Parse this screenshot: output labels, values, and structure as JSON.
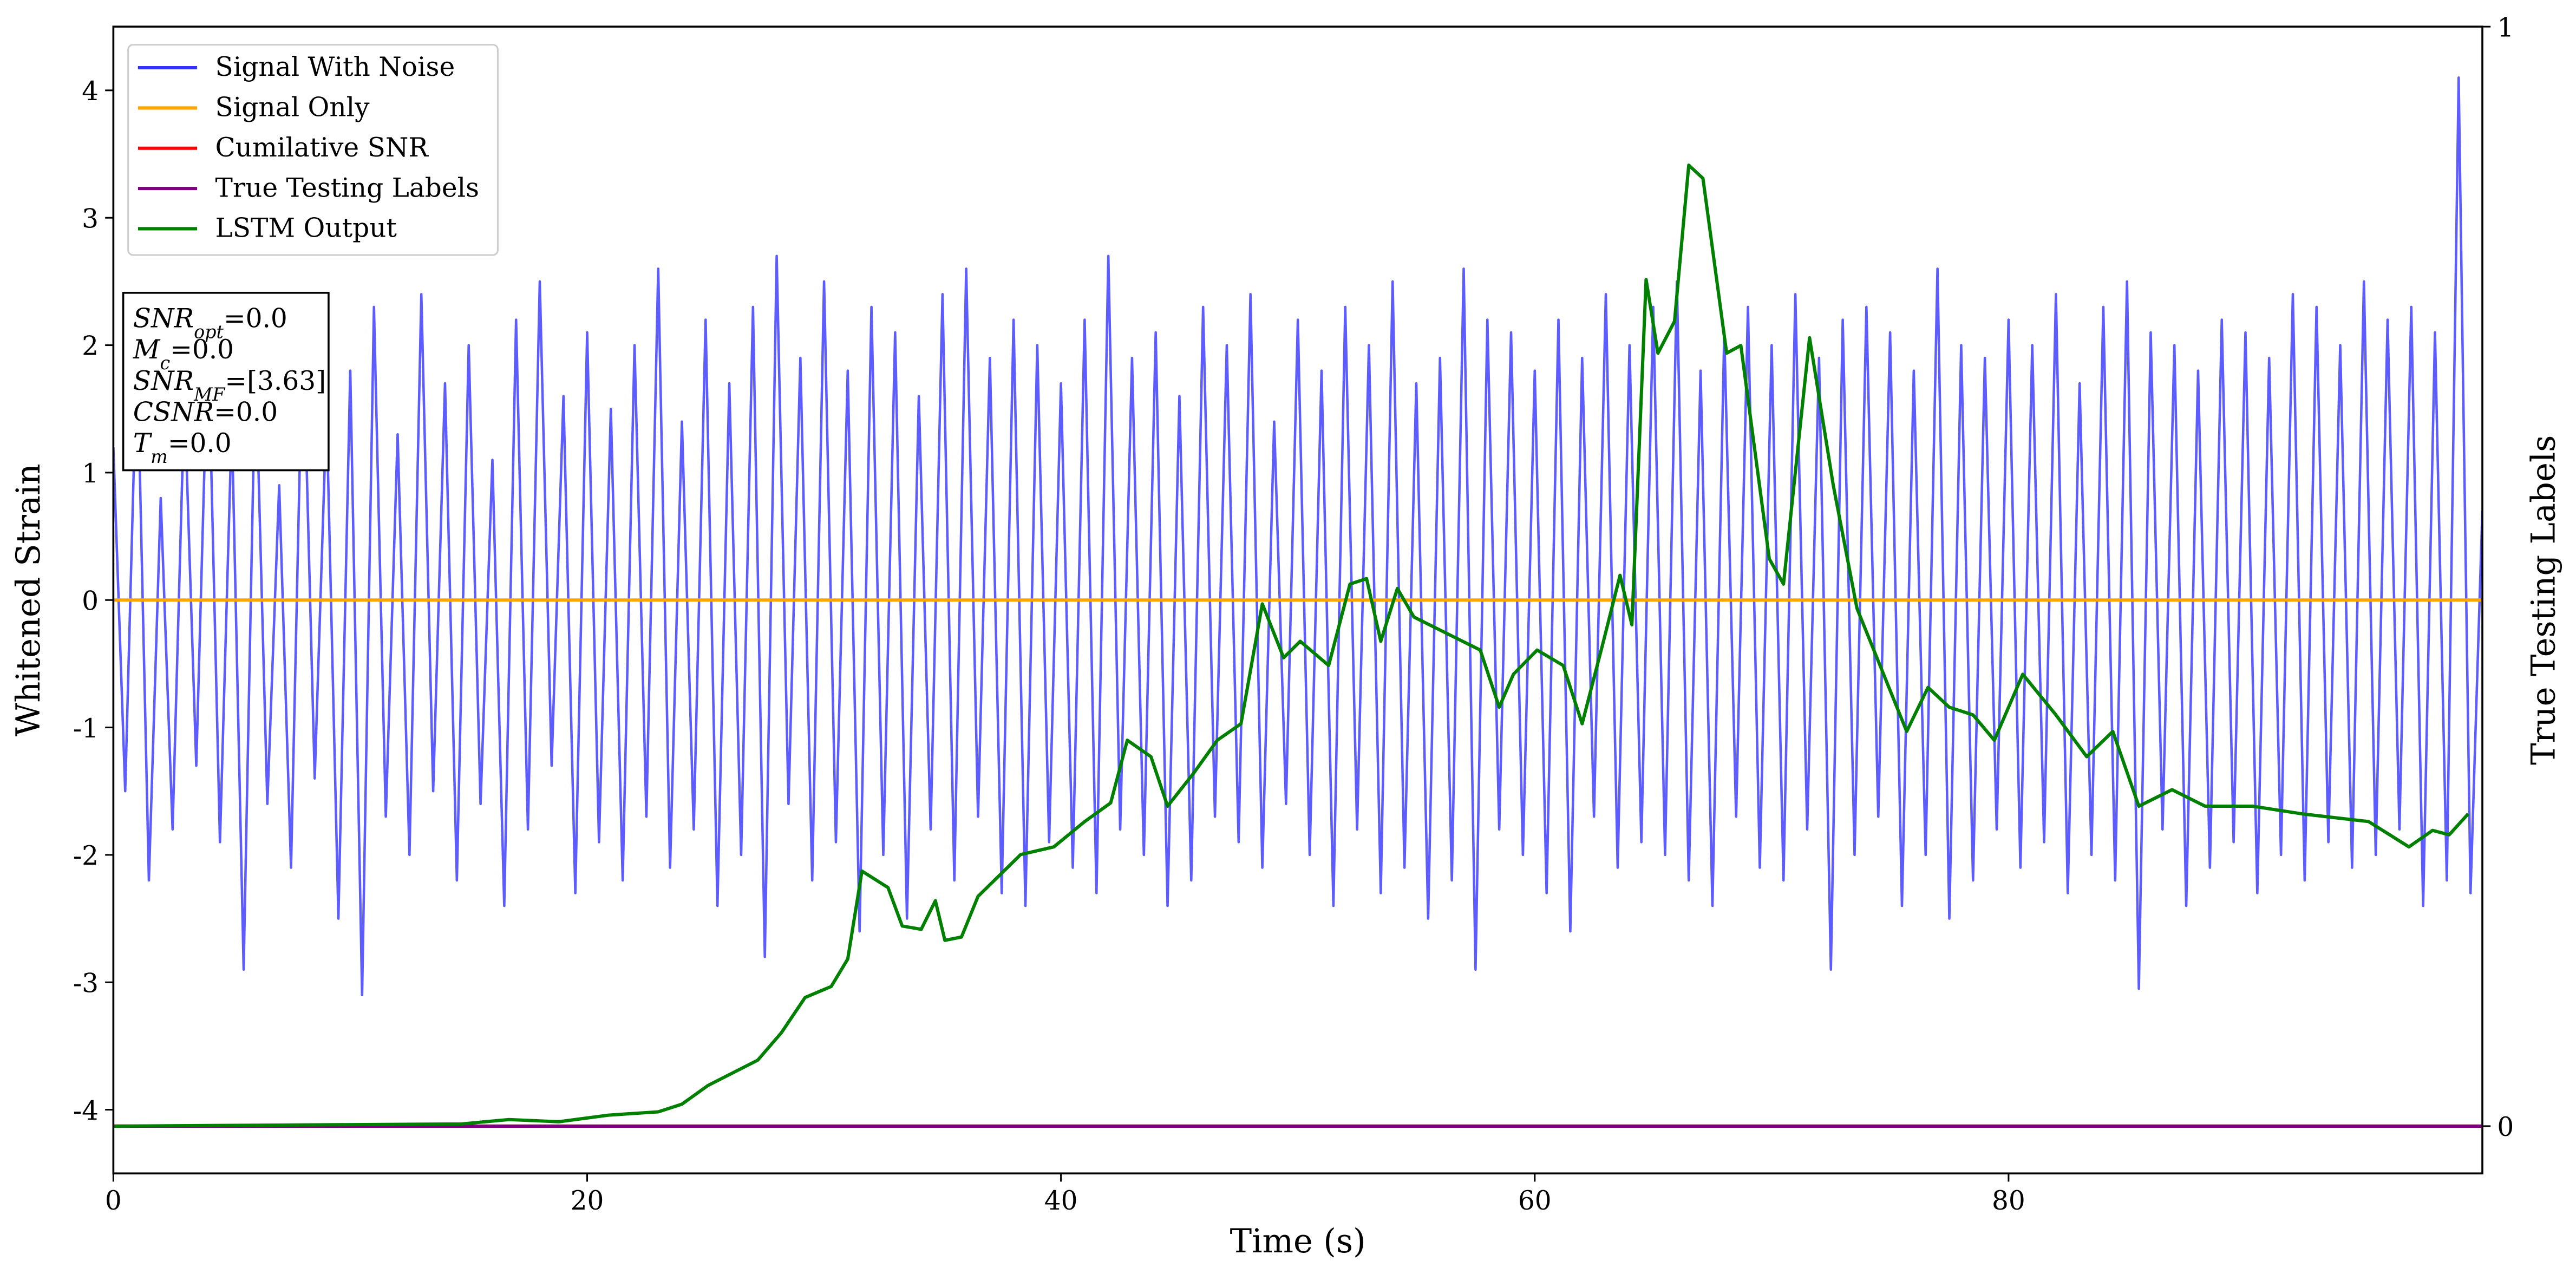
{
  "chart_data": {
    "type": "line",
    "x_label": "Time (s)",
    "y_label": "Whitened Strain",
    "y2_label": "True Testing Labels",
    "xlim": [
      0,
      100
    ],
    "ylim": [
      -4.5,
      4.5
    ],
    "y2lim": [
      -0.043,
      1
    ],
    "xticks": [
      0,
      20,
      40,
      60,
      80
    ],
    "yticks": [
      -4,
      -3,
      -2,
      -1,
      0,
      1,
      2,
      3,
      4
    ],
    "y2ticks": [
      0,
      1
    ],
    "legend": "upper left",
    "annotation": [
      {
        "main": "SNR",
        "sub": "opt",
        "rest": "=0.0"
      },
      {
        "main": "M",
        "sub": "c",
        "rest": "=0.0"
      },
      {
        "main": "SNR",
        "sub": "MF",
        "rest": "=[3.63]"
      },
      {
        "main": "CSNR",
        "sub": null,
        "rest": "=0.0"
      },
      {
        "main": "T",
        "sub": "m",
        "rest": "=0.0"
      }
    ],
    "series": [
      {
        "name": "Signal With Noise",
        "color": "#3333ff",
        "x": [
          0,
          0.5,
          1,
          1.5,
          2,
          2.5,
          3,
          3.5,
          4,
          4.5,
          5,
          5.5,
          6,
          6.5,
          7,
          7.5,
          8,
          8.5,
          9,
          9.5,
          10,
          10.5,
          11,
          11.5,
          12,
          12.5,
          13,
          13.5,
          14,
          14.5,
          15,
          15.5,
          16,
          16.5,
          17,
          17.5,
          18,
          18.5,
          19,
          19.5,
          20,
          20.5,
          21,
          21.5,
          22,
          22.5,
          23,
          23.5,
          24,
          24.5,
          25,
          25.5,
          26,
          26.5,
          27,
          27.5,
          28,
          28.5,
          29,
          29.5,
          30,
          30.5,
          31,
          31.5,
          32,
          32.5,
          33,
          33.5,
          34,
          34.5,
          35,
          35.5,
          36,
          36.5,
          37,
          37.5,
          38,
          38.5,
          39,
          39.5,
          40,
          40.5,
          41,
          41.5,
          42,
          42.5,
          43,
          43.5,
          44,
          44.5,
          45,
          45.5,
          46,
          46.5,
          47,
          47.5,
          48,
          48.5,
          49,
          49.5,
          50,
          50.5,
          51,
          51.5,
          52,
          52.5,
          53,
          53.5,
          54,
          54.5,
          55,
          55.5,
          56,
          56.5,
          57,
          57.5,
          58,
          58.5,
          59,
          59.5,
          60,
          60.5,
          61,
          61.5,
          62,
          62.5,
          63,
          63.5,
          64,
          64.5,
          65,
          65.5,
          66,
          66.5,
          67,
          67.5,
          68,
          68.5,
          69,
          69.5,
          70,
          70.5,
          71,
          71.5,
          72,
          72.5,
          73,
          73.5,
          74,
          74.5,
          75,
          75.5,
          76,
          76.5,
          77,
          77.5,
          78,
          78.5,
          79,
          79.5,
          80,
          80.5,
          81,
          81.5,
          82,
          82.5,
          83,
          83.5,
          84,
          84.5,
          85,
          85.5,
          86,
          86.5,
          87,
          87.5,
          88,
          88.5,
          89,
          89.5,
          90,
          90.5,
          91,
          91.5,
          92,
          92.5,
          93,
          93.5,
          94,
          94.5,
          95,
          95.5,
          96,
          96.5,
          97,
          97.5,
          98,
          98.5,
          99,
          99.5,
          100
        ],
        "values": [
          1.2,
          -1.5,
          2.0,
          -2.2,
          0.8,
          -1.8,
          1.6,
          -1.3,
          2.1,
          -1.9,
          1.4,
          -2.9,
          1.9,
          -1.6,
          0.9,
          -2.1,
          2.2,
          -1.4,
          1.5,
          -2.5,
          1.8,
          -3.1,
          2.3,
          -1.7,
          1.3,
          -2.0,
          2.4,
          -1.5,
          1.7,
          -2.2,
          2.0,
          -1.6,
          1.1,
          -2.4,
          2.2,
          -1.8,
          2.5,
          -1.3,
          1.6,
          -2.3,
          2.1,
          -1.9,
          1.5,
          -2.2,
          2.0,
          -1.7,
          2.6,
          -2.1,
          1.4,
          -1.8,
          2.2,
          -2.4,
          1.7,
          -2.0,
          2.3,
          -2.8,
          2.7,
          -1.6,
          1.9,
          -2.2,
          2.5,
          -1.9,
          1.8,
          -2.6,
          2.3,
          -2.0,
          2.1,
          -2.5,
          1.6,
          -1.8,
          2.4,
          -2.2,
          2.6,
          -1.7,
          1.9,
          -2.3,
          2.2,
          -2.4,
          2.0,
          -1.9,
          1.7,
          -2.1,
          2.2,
          -2.3,
          2.7,
          -1.8,
          1.9,
          -2.0,
          2.1,
          -2.4,
          1.6,
          -2.2,
          2.3,
          -1.7,
          2.0,
          -1.9,
          2.4,
          -2.1,
          1.4,
          -1.6,
          2.2,
          -2.0,
          1.8,
          -2.4,
          2.3,
          -1.8,
          2.0,
          -2.3,
          2.5,
          -2.1,
          1.7,
          -2.5,
          1.9,
          -2.2,
          2.6,
          -2.9,
          2.2,
          -1.8,
          2.1,
          -2.0,
          1.8,
          -2.3,
          2.2,
          -2.6,
          1.9,
          -1.7,
          2.4,
          -2.1,
          2.0,
          -1.9,
          2.3,
          -2.0,
          2.5,
          -2.2,
          1.8,
          -2.4,
          2.1,
          -1.7,
          2.3,
          -2.1,
          2.0,
          -2.2,
          2.4,
          -1.8,
          1.9,
          -2.9,
          2.2,
          -2.0,
          2.3,
          -1.7,
          2.1,
          -2.4,
          1.8,
          -2.0,
          2.6,
          -2.5,
          2.0,
          -2.2,
          1.9,
          -1.8,
          2.2,
          -2.1,
          2.0,
          -1.9,
          2.4,
          -2.3,
          1.7,
          -2.0,
          2.3,
          -2.2,
          2.5,
          -3.05,
          2.1,
          -1.8,
          2.0,
          -2.4,
          1.8,
          -2.1,
          2.2,
          -1.9,
          2.1,
          -2.3,
          1.9,
          -2.0,
          2.4,
          -2.2,
          2.3,
          -1.9,
          2.0,
          -2.1,
          2.5,
          -2.0,
          2.2,
          -1.8,
          2.3,
          -2.4,
          2.1,
          -2.2,
          4.1,
          -2.3,
          0.7
        ]
      },
      {
        "name": "Signal Only",
        "color": "#ffa500",
        "x": [
          0,
          100
        ],
        "values": [
          0,
          0
        ]
      },
      {
        "name": "Cumilative SNR",
        "color": "#ff0000",
        "axis": "y2",
        "x": [
          0,
          100
        ],
        "values": [
          0,
          0
        ]
      },
      {
        "name": "True Testing Labels",
        "color": "#800080",
        "axis": "y2",
        "x": [
          0,
          100
        ],
        "values": [
          0,
          0
        ]
      },
      {
        "name": "LSTM Output",
        "color": "#008000",
        "axis": "y2",
        "x": [
          0,
          14.7,
          16.7,
          18.8,
          20.9,
          23,
          24,
          25.1,
          27.2,
          28.2,
          29.2,
          30.3,
          31,
          31.6,
          32.7,
          33.3,
          34.1,
          34.7,
          35.1,
          35.8,
          36.5,
          38.3,
          39.7,
          41,
          42.1,
          42.8,
          43.8,
          44.5,
          45.6,
          46.6,
          47.6,
          48.5,
          49.4,
          50.1,
          51.3,
          52.2,
          52.9,
          53.5,
          54.2,
          54.9,
          56.3,
          57.7,
          58.5,
          59.1,
          60.1,
          61.2,
          62,
          62.9,
          63.6,
          64.1,
          64.7,
          65.2,
          65.9,
          66.5,
          67.1,
          68.1,
          68.7,
          69.9,
          70.5,
          71.6,
          72.6,
          73.6,
          75.7,
          76.6,
          77.5,
          78.5,
          79.4,
          80.6,
          82,
          83.3,
          84.4,
          85.5,
          86.9,
          88.3,
          90.3,
          92.4,
          95.2,
          96.9,
          97.9,
          98.6,
          99.4
        ],
        "values": [
          0,
          0.002,
          0.006,
          0.004,
          0.01,
          0.013,
          0.02,
          0.037,
          0.06,
          0.085,
          0.117,
          0.127,
          0.152,
          0.232,
          0.217,
          0.182,
          0.179,
          0.205,
          0.169,
          0.172,
          0.209,
          0.247,
          0.254,
          0.277,
          0.294,
          0.351,
          0.336,
          0.291,
          0.321,
          0.351,
          0.366,
          0.475,
          0.426,
          0.441,
          0.419,
          0.493,
          0.498,
          0.441,
          0.489,
          0.463,
          0.448,
          0.433,
          0.381,
          0.411,
          0.433,
          0.419,
          0.366,
          0.441,
          0.501,
          0.456,
          0.77,
          0.703,
          0.732,
          0.874,
          0.862,
          0.703,
          0.71,
          0.516,
          0.493,
          0.717,
          0.583,
          0.471,
          0.359,
          0.399,
          0.381,
          0.374,
          0.351,
          0.411,
          0.374,
          0.336,
          0.359,
          0.291,
          0.306,
          0.291,
          0.291,
          0.284,
          0.277,
          0.254,
          0.269,
          0.265,
          0.284
        ]
      }
    ]
  }
}
